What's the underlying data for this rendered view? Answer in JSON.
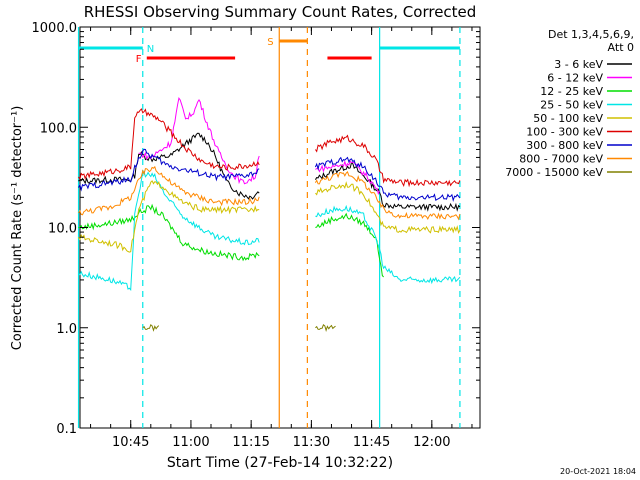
{
  "chart_data": {
    "type": "line",
    "title": "RHESSI Observing Summary Count Rates, Corrected",
    "xlabel": "Start Time (27-Feb-14 10:32:22)",
    "ylabel": "Corrected Count Rate (s⁻¹ detector⁻¹)",
    "y_scale": "log",
    "ylim": [
      0.1,
      1000
    ],
    "xlim": [
      "10:32:22",
      "12:12:00"
    ],
    "x_ticks": [
      "10:45",
      "11:00",
      "11:15",
      "11:30",
      "11:45",
      "12:00"
    ],
    "y_ticks": [
      "0.1",
      "1.0",
      "10.0",
      "100.0",
      "1000.0"
    ],
    "legend_header": [
      "Det 1,3,4,5,6,9,",
      "Att 0"
    ],
    "footer": "20-Oct-2021 18:04",
    "flags": {
      "N": {
        "label": "N",
        "color": "#00e6e6",
        "segments": [
          [
            "10:32",
            "10:48"
          ],
          [
            "11:47",
            "12:07"
          ]
        ]
      },
      "F": {
        "label": "F",
        "color": "#ff0000",
        "segments": [
          [
            "10:49",
            "11:11"
          ],
          [
            "11:34",
            "11:45"
          ]
        ]
      },
      "S": {
        "label": "S",
        "color": "#ff8800",
        "segments": [
          [
            "11:22",
            "11:29"
          ]
        ]
      }
    },
    "markers": [
      {
        "time": "11:22",
        "color": "#ff8800",
        "style": "solid"
      },
      {
        "time": "11:29",
        "color": "#ff8800",
        "style": "dashed"
      },
      {
        "time": "10:48",
        "color": "#00e6e6",
        "style": "dashed"
      },
      {
        "time": "11:47",
        "color": "#00e6e6",
        "style": "solid"
      },
      {
        "time": "12:07",
        "color": "#00e6e6",
        "style": "dashed"
      },
      {
        "time": "10:32",
        "color": "#00e6e6",
        "style": "solid"
      }
    ],
    "series": [
      {
        "name": "3 - 6 keV",
        "color": "#000000",
        "points": [
          [
            "10:32",
            29
          ],
          [
            "10:40",
            30
          ],
          [
            "10:45",
            30
          ],
          [
            "10:46",
            33
          ],
          [
            "10:47",
            55
          ],
          [
            "10:50",
            48
          ],
          [
            "10:55",
            52
          ],
          [
            "10:58",
            65
          ],
          [
            "11:00",
            75
          ],
          [
            "11:02",
            85
          ],
          [
            "11:04",
            72
          ],
          [
            "11:06",
            52
          ],
          [
            "11:09",
            28
          ],
          [
            "11:12",
            22
          ],
          [
            "11:15",
            20
          ],
          [
            "11:17",
            23
          ],
          [
            "11:31",
            30
          ],
          [
            "11:35",
            36
          ],
          [
            "11:40",
            42
          ],
          [
            "11:44",
            30
          ],
          [
            "11:47",
            22
          ],
          [
            "11:48",
            17
          ],
          [
            "11:52",
            16
          ],
          [
            "11:56",
            16
          ],
          [
            "12:00",
            16
          ],
          [
            "12:03",
            16
          ],
          [
            "12:07",
            16
          ]
        ]
      },
      {
        "name": "6 - 12 keV",
        "color": "#ff00ff",
        "points": [
          [
            "10:47",
            55
          ],
          [
            "10:50",
            50
          ],
          [
            "10:55",
            70
          ],
          [
            "10:57",
            190
          ],
          [
            "10:59",
            120
          ],
          [
            "11:01",
            150
          ],
          [
            "11:02",
            190
          ],
          [
            "11:04",
            110
          ],
          [
            "11:07",
            55
          ],
          [
            "11:10",
            35
          ],
          [
            "11:13",
            28
          ],
          [
            "11:16",
            32
          ],
          [
            "11:17",
            55
          ],
          [
            "11:31",
            38
          ],
          [
            "11:35",
            40
          ],
          [
            "11:40",
            45
          ],
          [
            "11:44",
            32
          ],
          [
            "11:47",
            22
          ]
        ]
      },
      {
        "name": "12 - 25 keV",
        "color": "#00dd00",
        "points": [
          [
            "10:32",
            10
          ],
          [
            "10:40",
            11
          ],
          [
            "10:45",
            12
          ],
          [
            "10:47",
            14
          ],
          [
            "10:50",
            16
          ],
          [
            "10:53",
            13
          ],
          [
            "10:56",
            9
          ],
          [
            "10:58",
            7
          ],
          [
            "11:02",
            6
          ],
          [
            "11:06",
            5.5
          ],
          [
            "11:10",
            5.2
          ],
          [
            "11:14",
            5
          ],
          [
            "11:17",
            5.5
          ],
          [
            "11:31",
            10
          ],
          [
            "11:35",
            12
          ],
          [
            "11:39",
            13
          ],
          [
            "11:43",
            11
          ],
          [
            "11:46",
            8
          ],
          [
            "11:47",
            5
          ],
          [
            "11:48",
            3
          ]
        ]
      },
      {
        "name": "25 - 50 keV",
        "color": "#00e6e6",
        "points": [
          [
            "10:32",
            3.5
          ],
          [
            "10:40",
            3
          ],
          [
            "10:45",
            2.5
          ],
          [
            "10:46",
            13
          ],
          [
            "10:48",
            35
          ],
          [
            "10:51",
            32
          ],
          [
            "10:54",
            20
          ],
          [
            "10:58",
            13
          ],
          [
            "11:02",
            10
          ],
          [
            "11:06",
            8
          ],
          [
            "11:10",
            7.5
          ],
          [
            "11:14",
            7
          ],
          [
            "11:17",
            7.5
          ],
          [
            "11:31",
            13
          ],
          [
            "11:35",
            15
          ],
          [
            "11:39",
            15.5
          ],
          [
            "11:43",
            13
          ],
          [
            "11:46",
            8
          ],
          [
            "11:47",
            6
          ],
          [
            "11:48",
            4
          ],
          [
            "11:52",
            3
          ],
          [
            "11:56",
            3
          ],
          [
            "12:00",
            3
          ],
          [
            "12:04",
            3
          ],
          [
            "12:07",
            3
          ]
        ]
      },
      {
        "name": "50 - 100 keV",
        "color": "#d0c000",
        "points": [
          [
            "10:32",
            8
          ],
          [
            "10:40",
            7
          ],
          [
            "10:45",
            6
          ],
          [
            "10:47",
            15
          ],
          [
            "10:50",
            28
          ],
          [
            "10:53",
            26
          ],
          [
            "10:56",
            20
          ],
          [
            "10:59",
            17
          ],
          [
            "11:03",
            15
          ],
          [
            "11:07",
            15
          ],
          [
            "11:11",
            15
          ],
          [
            "11:15",
            15
          ],
          [
            "11:17",
            16
          ],
          [
            "11:31",
            22
          ],
          [
            "11:35",
            25
          ],
          [
            "11:39",
            27
          ],
          [
            "11:43",
            22
          ],
          [
            "11:46",
            14
          ],
          [
            "11:48",
            10
          ],
          [
            "11:52",
            9.5
          ],
          [
            "11:56",
            9.5
          ],
          [
            "12:00",
            9.5
          ],
          [
            "12:04",
            9.5
          ],
          [
            "12:07",
            9.5
          ]
        ]
      },
      {
        "name": "100 - 300 keV",
        "color": "#dd0000",
        "points": [
          [
            "10:32",
            32
          ],
          [
            "10:40",
            36
          ],
          [
            "10:45",
            40
          ],
          [
            "10:46",
            130
          ],
          [
            "10:48",
            145
          ],
          [
            "10:52",
            120
          ],
          [
            "10:56",
            80
          ],
          [
            "10:59",
            60
          ],
          [
            "11:03",
            45
          ],
          [
            "11:07",
            40
          ],
          [
            "11:11",
            40
          ],
          [
            "11:15",
            42
          ],
          [
            "11:17",
            45
          ],
          [
            "11:31",
            60
          ],
          [
            "11:35",
            72
          ],
          [
            "11:39",
            78
          ],
          [
            "11:43",
            65
          ],
          [
            "11:46",
            48
          ],
          [
            "11:48",
            30
          ],
          [
            "11:52",
            28
          ],
          [
            "11:56",
            28
          ],
          [
            "12:00",
            28
          ],
          [
            "12:04",
            28
          ],
          [
            "12:07",
            28
          ]
        ]
      },
      {
        "name": "300 - 800 keV",
        "color": "#0000cc",
        "points": [
          [
            "10:32",
            25
          ],
          [
            "10:40",
            28
          ],
          [
            "10:45",
            30
          ],
          [
            "10:46",
            40
          ],
          [
            "10:48",
            58
          ],
          [
            "10:51",
            50
          ],
          [
            "10:54",
            42
          ],
          [
            "10:58",
            38
          ],
          [
            "11:02",
            35
          ],
          [
            "11:06",
            32
          ],
          [
            "11:10",
            32
          ],
          [
            "11:14",
            33
          ],
          [
            "11:17",
            36
          ],
          [
            "11:31",
            40
          ],
          [
            "11:35",
            45
          ],
          [
            "11:39",
            48
          ],
          [
            "11:43",
            40
          ],
          [
            "11:46",
            30
          ],
          [
            "11:48",
            22
          ],
          [
            "11:52",
            20
          ],
          [
            "11:56",
            20
          ],
          [
            "12:00",
            20
          ],
          [
            "12:04",
            20
          ],
          [
            "12:07",
            20
          ]
        ]
      },
      {
        "name": "800 - 7000 keV",
        "color": "#ff8800",
        "points": [
          [
            "10:32",
            14
          ],
          [
            "10:40",
            16
          ],
          [
            "10:45",
            20
          ],
          [
            "10:48",
            35
          ],
          [
            "10:51",
            40
          ],
          [
            "10:54",
            30
          ],
          [
            "10:58",
            23
          ],
          [
            "11:02",
            20
          ],
          [
            "11:06",
            18
          ],
          [
            "11:10",
            18
          ],
          [
            "11:14",
            18
          ],
          [
            "11:17",
            19
          ],
          [
            "11:31",
            28
          ],
          [
            "11:35",
            32
          ],
          [
            "11:39",
            35
          ],
          [
            "11:43",
            28
          ],
          [
            "11:46",
            20
          ],
          [
            "11:48",
            15
          ],
          [
            "11:52",
            13
          ],
          [
            "11:56",
            13
          ],
          [
            "12:00",
            13
          ],
          [
            "12:04",
            13
          ],
          [
            "12:07",
            13
          ]
        ]
      },
      {
        "name": "7000 - 15000 keV",
        "color": "#808000",
        "points": [
          [
            "10:48",
            1.0
          ],
          [
            "10:52",
            1.0
          ],
          [
            "11:31",
            1.0
          ],
          [
            "11:36",
            1.0
          ]
        ]
      }
    ]
  }
}
